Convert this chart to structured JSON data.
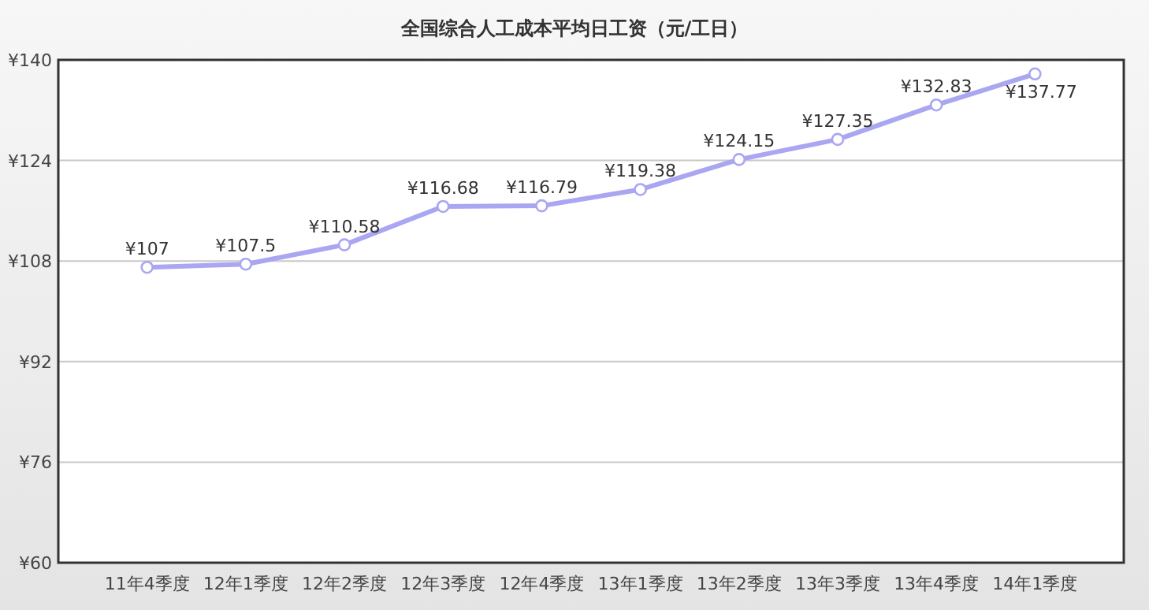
{
  "chart_data": {
    "type": "line",
    "title": "全国综合人工成本平均日工资（元/工日）",
    "categories": [
      "11年4季度",
      "12年1季度",
      "12年2季度",
      "12年3季度",
      "12年4季度",
      "13年1季度",
      "13年2季度",
      "13年3季度",
      "13年4季度",
      "14年1季度"
    ],
    "series": [
      {
        "color": "#a9a6f2",
        "values": [
          107,
          107.5,
          110.58,
          116.68,
          116.79,
          119.38,
          124.15,
          127.35,
          132.83,
          137.77
        ],
        "value_labels": [
          "¥107",
          "¥107.5",
          "¥110.58",
          "¥116.68",
          "¥116.79",
          "¥119.38",
          "¥124.15",
          "¥127.35",
          "¥132.83",
          "¥137.77"
        ]
      }
    ],
    "ylim": [
      60,
      140
    ],
    "yticks": [
      {
        "value": 60,
        "label": "¥60"
      },
      {
        "value": 76,
        "label": "¥76"
      },
      {
        "value": 92,
        "label": "¥92"
      },
      {
        "value": 108,
        "label": "¥108"
      },
      {
        "value": 124,
        "label": "¥124"
      },
      {
        "value": 140,
        "label": "¥140"
      }
    ],
    "grid": "y",
    "marker": "circle"
  }
}
